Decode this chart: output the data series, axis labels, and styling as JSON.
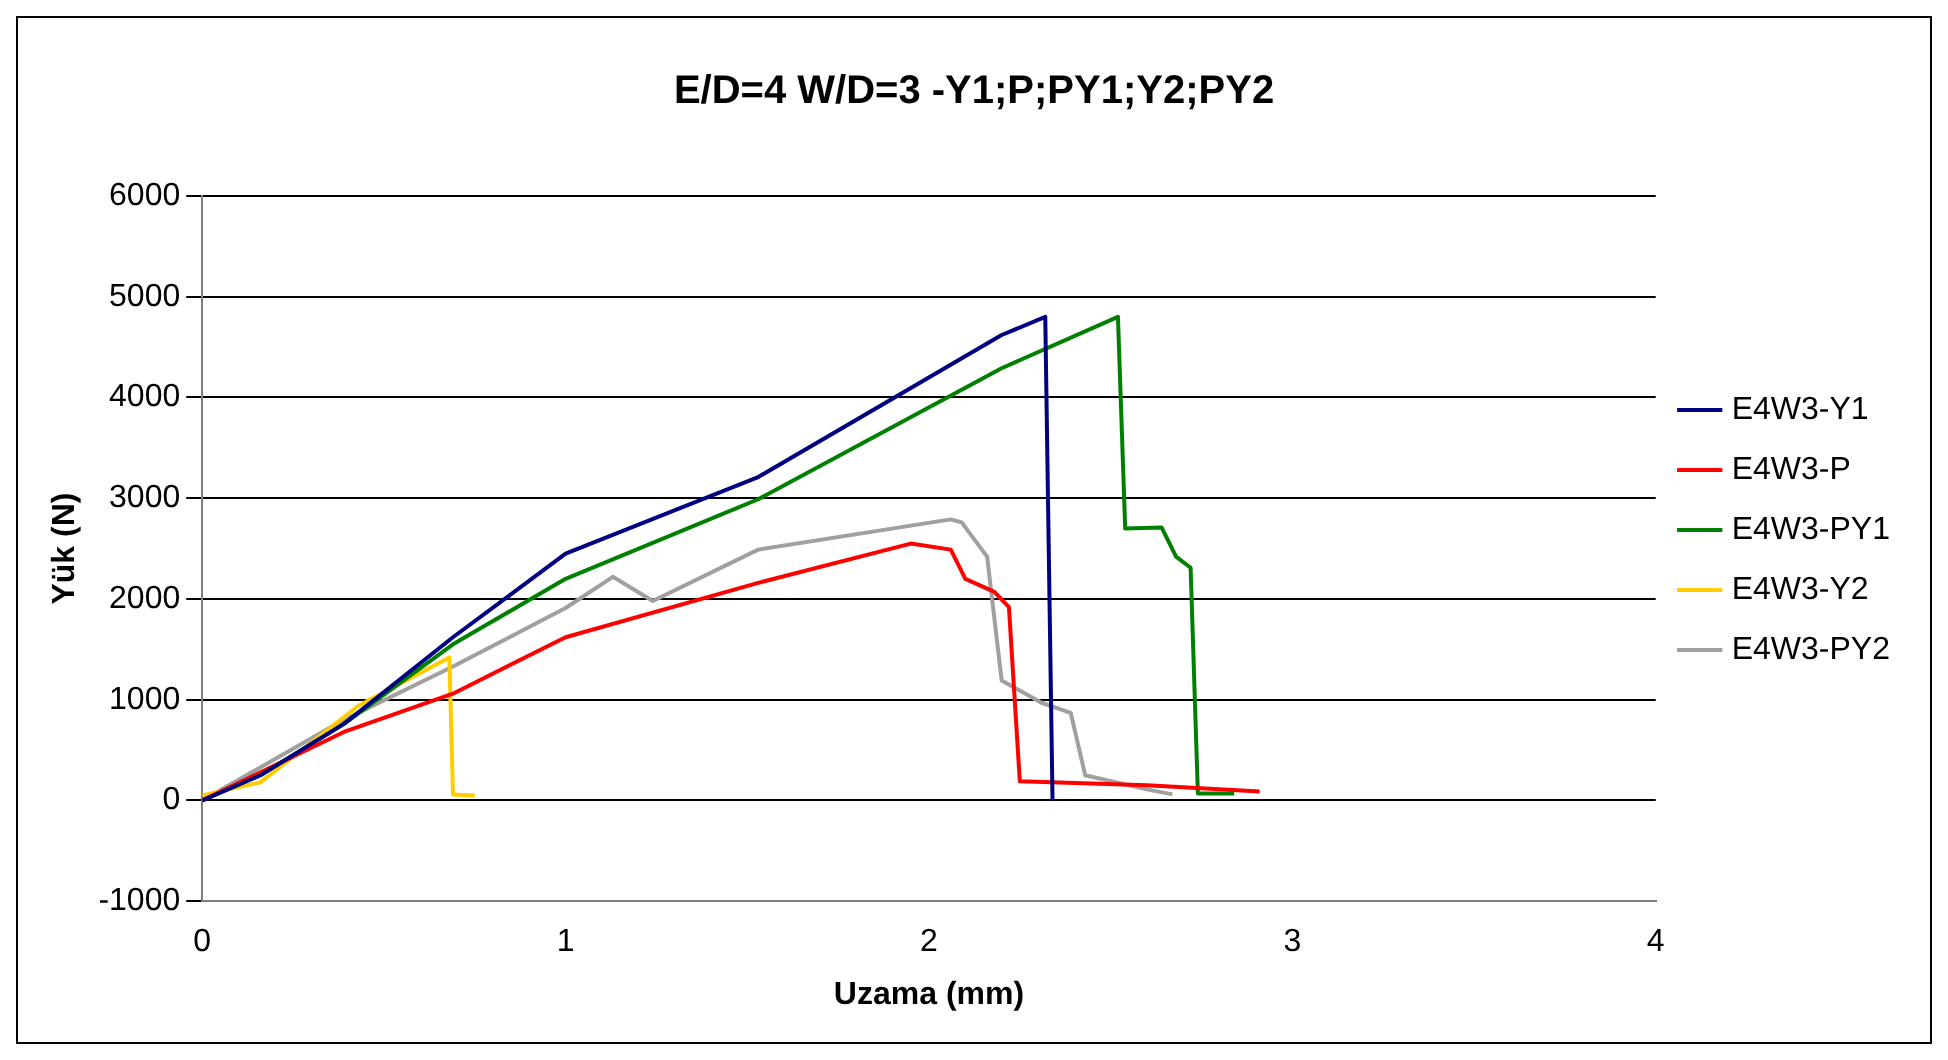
{
  "chart_data": {
    "type": "line",
    "title": "E/D=4 W/D=3 -Y1;P;PY1;Y2;PY2",
    "xlabel": "Uzama (mm)",
    "ylabel": "Yük (N)",
    "xlim": [
      0,
      4
    ],
    "xticks": [
      0,
      1,
      2,
      3,
      4
    ],
    "ylim": [
      -1000,
      6000
    ],
    "yticks": [
      -1000,
      0,
      1000,
      2000,
      3000,
      4000,
      5000,
      6000
    ],
    "grid": "y",
    "legend": "right",
    "marker": "none",
    "line_style": "solid",
    "series": [
      {
        "name": "E4W3-Y1",
        "color": "#000080",
        "x": [
          0,
          0.16,
          0.39,
          0.69,
          1.0,
          1.53,
          2.2,
          2.32,
          2.34
        ],
        "values": [
          0,
          250,
          760,
          1620,
          2450,
          3210,
          4620,
          4800,
          0
        ]
      },
      {
        "name": "E4W3-P",
        "color": "#ff0000",
        "x": [
          0,
          0.39,
          0.69,
          1.0,
          1.53,
          1.95,
          2.06,
          2.1,
          2.18,
          2.22,
          2.25,
          2.6,
          2.91
        ],
        "values": [
          0,
          680,
          1060,
          1620,
          2160,
          2550,
          2490,
          2200,
          2070,
          1920,
          190,
          150,
          90
        ]
      },
      {
        "name": "E4W3-PY1",
        "color": "#008000",
        "x": [
          0,
          0.16,
          0.39,
          0.69,
          1.0,
          1.53,
          2.2,
          2.52,
          2.54,
          2.64,
          2.68,
          2.72,
          2.74,
          2.84
        ],
        "values": [
          0,
          250,
          760,
          1550,
          2200,
          2990,
          4290,
          4800,
          2700,
          2710,
          2420,
          2310,
          70,
          70
        ]
      },
      {
        "name": "E4W3-Y2",
        "color": "#ffcc00",
        "x": [
          0,
          0.16,
          0.43,
          0.68,
          0.69,
          0.75
        ],
        "values": [
          50,
          180,
          940,
          1420,
          60,
          50
        ]
      },
      {
        "name": "E4W3-PY2",
        "color": "#a0a0a0",
        "x": [
          0,
          0.39,
          0.69,
          1.0,
          1.13,
          1.24,
          1.53,
          2.06,
          2.09,
          2.16,
          2.2,
          2.31,
          2.39,
          2.43,
          2.6,
          2.67
        ],
        "values": [
          0,
          800,
          1330,
          1910,
          2220,
          1980,
          2490,
          2790,
          2760,
          2420,
          1190,
          970,
          870,
          250,
          110,
          60
        ]
      }
    ]
  }
}
